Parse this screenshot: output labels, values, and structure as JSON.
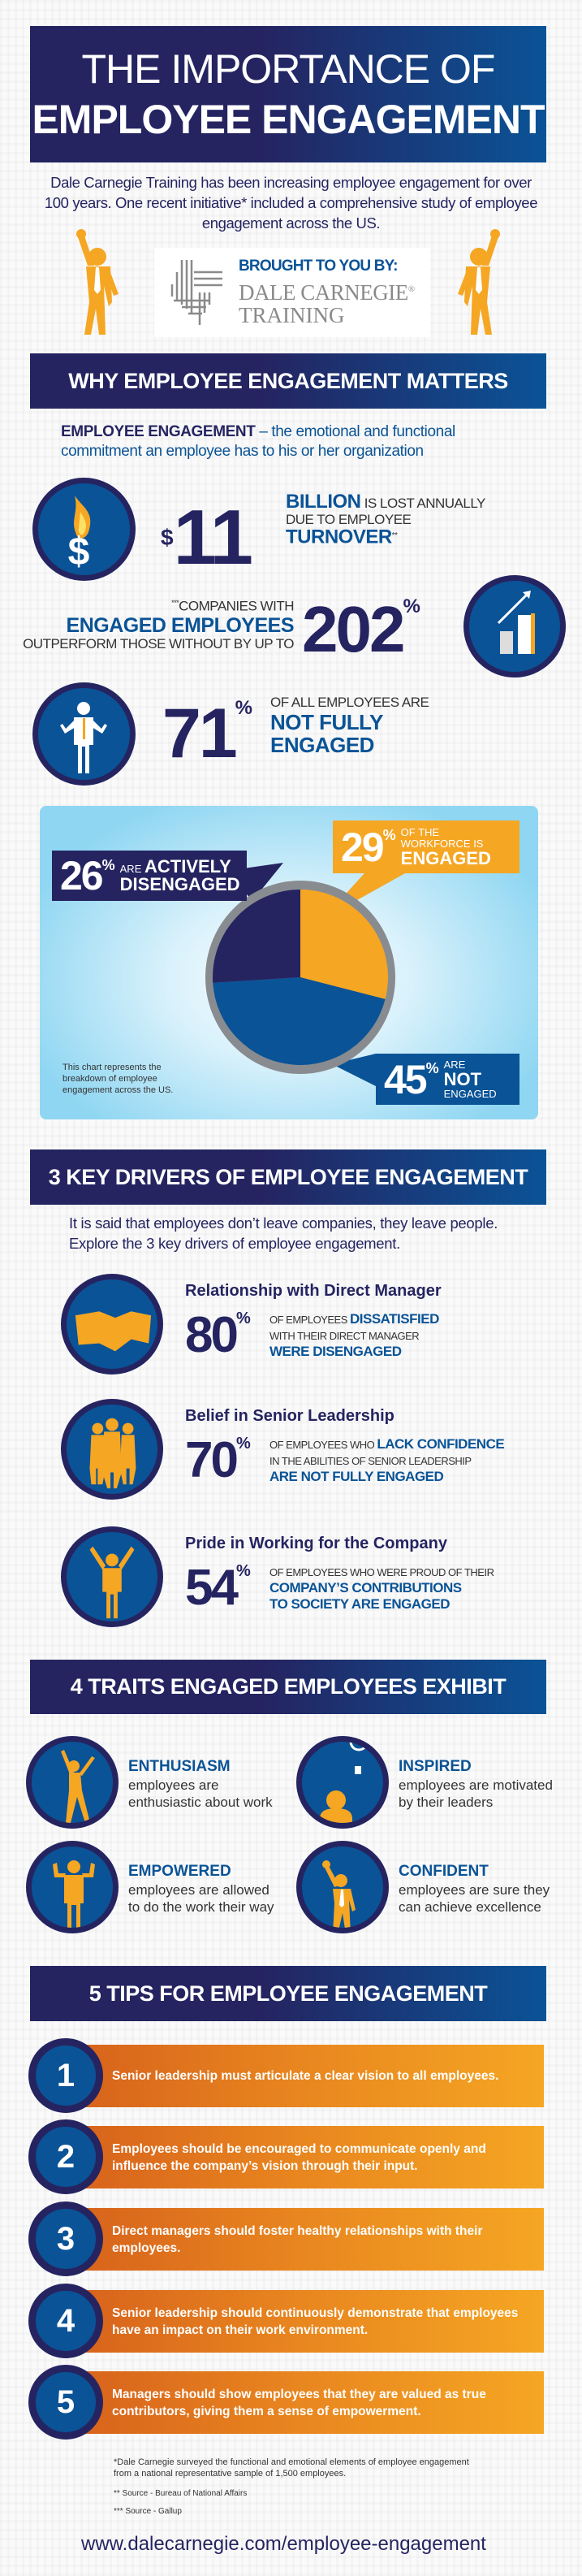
{
  "header": {
    "title_line1": "THE IMPORTANCE OF",
    "title_line2": "EMPLOYEE ENGAGEMENT",
    "intro": "Dale Carnegie Training has been increasing employee engagement for over 100 years. One recent initiative* included a comprehensive study of employee engagement across the US.",
    "brought_by": "BROUGHT TO YOU BY:",
    "logo_line1": "DALE CARNEGIE",
    "logo_reg": "®",
    "logo_line2": "TRAINING"
  },
  "why": {
    "heading": "WHY EMPLOYEE ENGAGEMENT MATTERS",
    "definition_term": "EMPLOYEE ENGAGEMENT",
    "definition_text": " – the emotional and functional commitment an employee has to his or her organization",
    "turnover": {
      "currency": "$",
      "number": "11",
      "bold1": "BILLION",
      "text1": " IS LOST ANNUALLY",
      "text2": "DUE TO EMPLOYEE",
      "bold2": "TURNOVER",
      "mark": "**"
    },
    "outperform": {
      "mark": "***",
      "line1": "COMPANIES WITH",
      "bold": "ENGAGED EMPLOYEES",
      "line3": "OUTPERFORM THOSE WITHOUT BY UP TO",
      "number": "202",
      "pct": "%"
    },
    "not_engaged": {
      "number": "71",
      "pct": "%",
      "line1": "OF ALL EMPLOYEES ARE",
      "bold1": "NOT FULLY",
      "bold2": "ENGAGED"
    }
  },
  "chart_data": {
    "type": "pie",
    "caption": "This chart represents the breakdown of employee engagement across the US.",
    "slices": [
      {
        "key": "engaged",
        "value": 29,
        "color": "#f5a623",
        "number": "29",
        "pct": "%",
        "small1": "OF THE",
        "small2": "WORKFORCE IS",
        "bold": "ENGAGED"
      },
      {
        "key": "not_engaged",
        "value": 45,
        "color": "#0a5396",
        "number": "45",
        "pct": "%",
        "small1": "ARE",
        "bold": "NOT",
        "small2": "ENGAGED"
      },
      {
        "key": "actively_disengaged",
        "value": 26,
        "color": "#252461",
        "number": "26",
        "pct": "%",
        "small1": "ARE",
        "bold": "ACTIVELY",
        "bold2": "DISENGAGED"
      }
    ]
  },
  "drivers": {
    "heading": "3 KEY DRIVERS OF EMPLOYEE ENGAGEMENT",
    "intro": "It is said that employees don’t leave companies, they leave people. Explore the 3 key drivers of employee engagement.",
    "items": [
      {
        "title": "Relationship with Direct Manager",
        "number": "80",
        "pct": "%",
        "l1": "OF EMPLOYEES ",
        "l1b": "DISSATISFIED",
        "l2": "WITH THEIR DIRECT MANAGER",
        "l3b": "WERE DISENGAGED"
      },
      {
        "title": "Belief in Senior Leadership",
        "number": "70",
        "pct": "%",
        "l1": "OF EMPLOYEES WHO ",
        "l1b": "LACK CONFIDENCE",
        "l2": "IN THE ABILITIES OF SENIOR LEADERSHIP",
        "l3b": "ARE NOT FULLY ENGAGED"
      },
      {
        "title": "Pride in Working for the Company",
        "number": "54",
        "pct": "%",
        "l1": "OF EMPLOYEES WHO WERE PROUD OF THEIR",
        "l2b": "COMPANY’S CONTRIBUTIONS",
        "l3b": "TO SOCIETY ARE ENGAGED"
      }
    ]
  },
  "traits": {
    "heading": "4 TRAITS ENGAGED EMPLOYEES EXHIBIT",
    "items": [
      {
        "title": "ENTHUSIASM",
        "desc": "employees are enthusiastic about work"
      },
      {
        "title": "INSPIRED",
        "desc": "employees are motivated by their leaders"
      },
      {
        "title": "EMPOWERED",
        "desc": "employees are allowed to do the work their way"
      },
      {
        "title": "CONFIDENT",
        "desc": "employees are sure they can achieve excellence"
      }
    ]
  },
  "tips": {
    "heading": "5 TIPS FOR EMPLOYEE ENGAGEMENT",
    "items": [
      {
        "number": "1",
        "text": "Senior leadership must articulate a clear vision to all employees."
      },
      {
        "number": "2",
        "text": "Employees should be encouraged to communicate openly and influence the company’s vision through their input."
      },
      {
        "number": "3",
        "text": "Direct managers should foster healthy relationships with their employees."
      },
      {
        "number": "4",
        "text": "Senior leadership should continuously demonstrate that employees have an impact on their work environment."
      },
      {
        "number": "5",
        "text": "Managers should show employees that they are valued as true contributors, giving them a sense of empowerment."
      }
    ]
  },
  "footnotes": [
    "*Dale Carnegie surveyed the functional and emotional elements of employee engagement from a national representative sample of 1,500 employees.",
    "** Source - Bureau of National Affairs",
    "*** Source - Gallup"
  ],
  "url": "www.dalecarnegie.com/employee-engagement",
  "colors": {
    "navy": "#252461",
    "blue": "#0a5396",
    "orange": "#f5a623",
    "panel": "#8fd6f2"
  }
}
